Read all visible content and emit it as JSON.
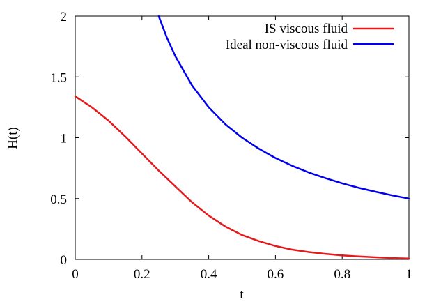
{
  "chart_data": {
    "type": "line",
    "xlabel": "t",
    "ylabel": "H(t)",
    "xlim": [
      0,
      1
    ],
    "ylim": [
      0,
      2
    ],
    "x_ticks": [
      0,
      0.2,
      0.4,
      0.6,
      0.8,
      1
    ],
    "x_tick_labels": [
      "0",
      "0.2",
      "0.4",
      "0.6",
      "0.8",
      "1"
    ],
    "y_ticks": [
      0,
      0.5,
      1,
      1.5,
      2
    ],
    "y_tick_labels": [
      "0",
      "0.5",
      "1",
      "1.5",
      "2"
    ],
    "grid": false,
    "legend_position": "top-right",
    "series": [
      {
        "name": "IS viscous fluid",
        "color": "#e41a1c",
        "x": [
          0,
          0.05,
          0.1,
          0.15,
          0.2,
          0.25,
          0.3,
          0.35,
          0.4,
          0.45,
          0.5,
          0.55,
          0.6,
          0.65,
          0.7,
          0.75,
          0.8,
          0.85,
          0.9,
          0.95,
          1
        ],
        "y": [
          1.34,
          1.25,
          1.14,
          1.01,
          0.87,
          0.73,
          0.6,
          0.47,
          0.36,
          0.27,
          0.2,
          0.15,
          0.11,
          0.08,
          0.06,
          0.045,
          0.033,
          0.024,
          0.017,
          0.011,
          0.007
        ]
      },
      {
        "name": "Ideal non-viscous fluid",
        "color": "#0000ee",
        "x": [
          0.25,
          0.275,
          0.3,
          0.35,
          0.4,
          0.45,
          0.5,
          0.55,
          0.6,
          0.65,
          0.7,
          0.75,
          0.8,
          0.85,
          0.9,
          0.95,
          1
        ],
        "y": [
          2.0,
          1.82,
          1.67,
          1.43,
          1.25,
          1.11,
          1.0,
          0.91,
          0.833,
          0.769,
          0.714,
          0.667,
          0.625,
          0.588,
          0.556,
          0.526,
          0.5
        ]
      }
    ]
  }
}
